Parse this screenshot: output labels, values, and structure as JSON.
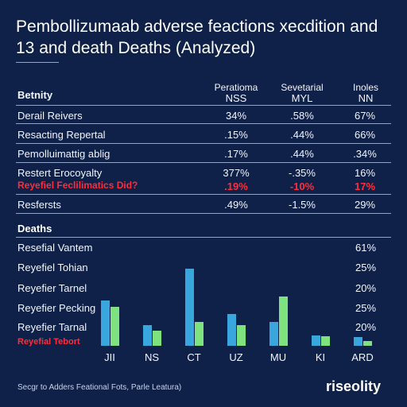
{
  "title": "Pembollizumaab adverse feactions xecdition and 13 and death Deaths (Analyzed)",
  "table": {
    "row_header": "Betnity",
    "columns": [
      {
        "top": "Peratioma",
        "bottom": "NSS"
      },
      {
        "top": "Sevetarial",
        "bottom": "MYL"
      },
      {
        "top": "Inoles",
        "bottom": "NN"
      }
    ],
    "rows": [
      {
        "label": "Derail Reivers",
        "values": [
          "34%",
          ".58%",
          "67%"
        ],
        "highlight": false
      },
      {
        "label": "Resacting Repertal",
        "values": [
          ".15%",
          ".44%",
          "66%"
        ],
        "highlight": false
      },
      {
        "label": "Pemolluimattig ablig",
        "values": [
          ".17%",
          ".44%",
          ".34%"
        ],
        "highlight": false
      },
      {
        "label": "Restert Erocoyalty",
        "values": [
          "377%",
          "-.35%",
          "16%"
        ],
        "highlight": false
      },
      {
        "label": "Reyefiel Feclilimatics Did?",
        "values": [
          ".19%",
          "-10%",
          "17%"
        ],
        "highlight": true
      },
      {
        "label": "Resfersts",
        "values": [
          ".49%",
          "-1.5%",
          "29%"
        ],
        "highlight": false
      }
    ]
  },
  "deaths": {
    "section_label": "Deaths",
    "rows": [
      {
        "label": "Resefial Vantem",
        "value": "61%",
        "highlight": false
      },
      {
        "label": "Reyefiel Tohian",
        "value": "25%",
        "highlight": false
      },
      {
        "label": "Reyefier Tarnel",
        "value": "20%",
        "highlight": false
      },
      {
        "label": "Reyefier Pecking",
        "value": "25%",
        "highlight": false
      },
      {
        "label": "Reyefier Tarnal",
        "value": "20%",
        "highlight": false
      },
      {
        "label": "Reyefial Tebort",
        "value": "",
        "highlight": true
      }
    ]
  },
  "chart_data": {
    "type": "bar",
    "categories": [
      "JII",
      "NS",
      "CT",
      "UZ",
      "MU",
      "KI",
      "ARD"
    ],
    "series": [
      {
        "values": [
          57,
          26,
          97,
          40,
          30,
          13,
          11
        ]
      },
      {
        "values": [
          49,
          19,
          30,
          26,
          62,
          12,
          6
        ]
      }
    ],
    "colors": [
      "#3aa6de",
      "#7ee37e"
    ],
    "ylim": [
      0,
      100
    ]
  },
  "footer": "Secgr to Adders Feational Fots, Parle Leatura)",
  "logo": "riseolity"
}
